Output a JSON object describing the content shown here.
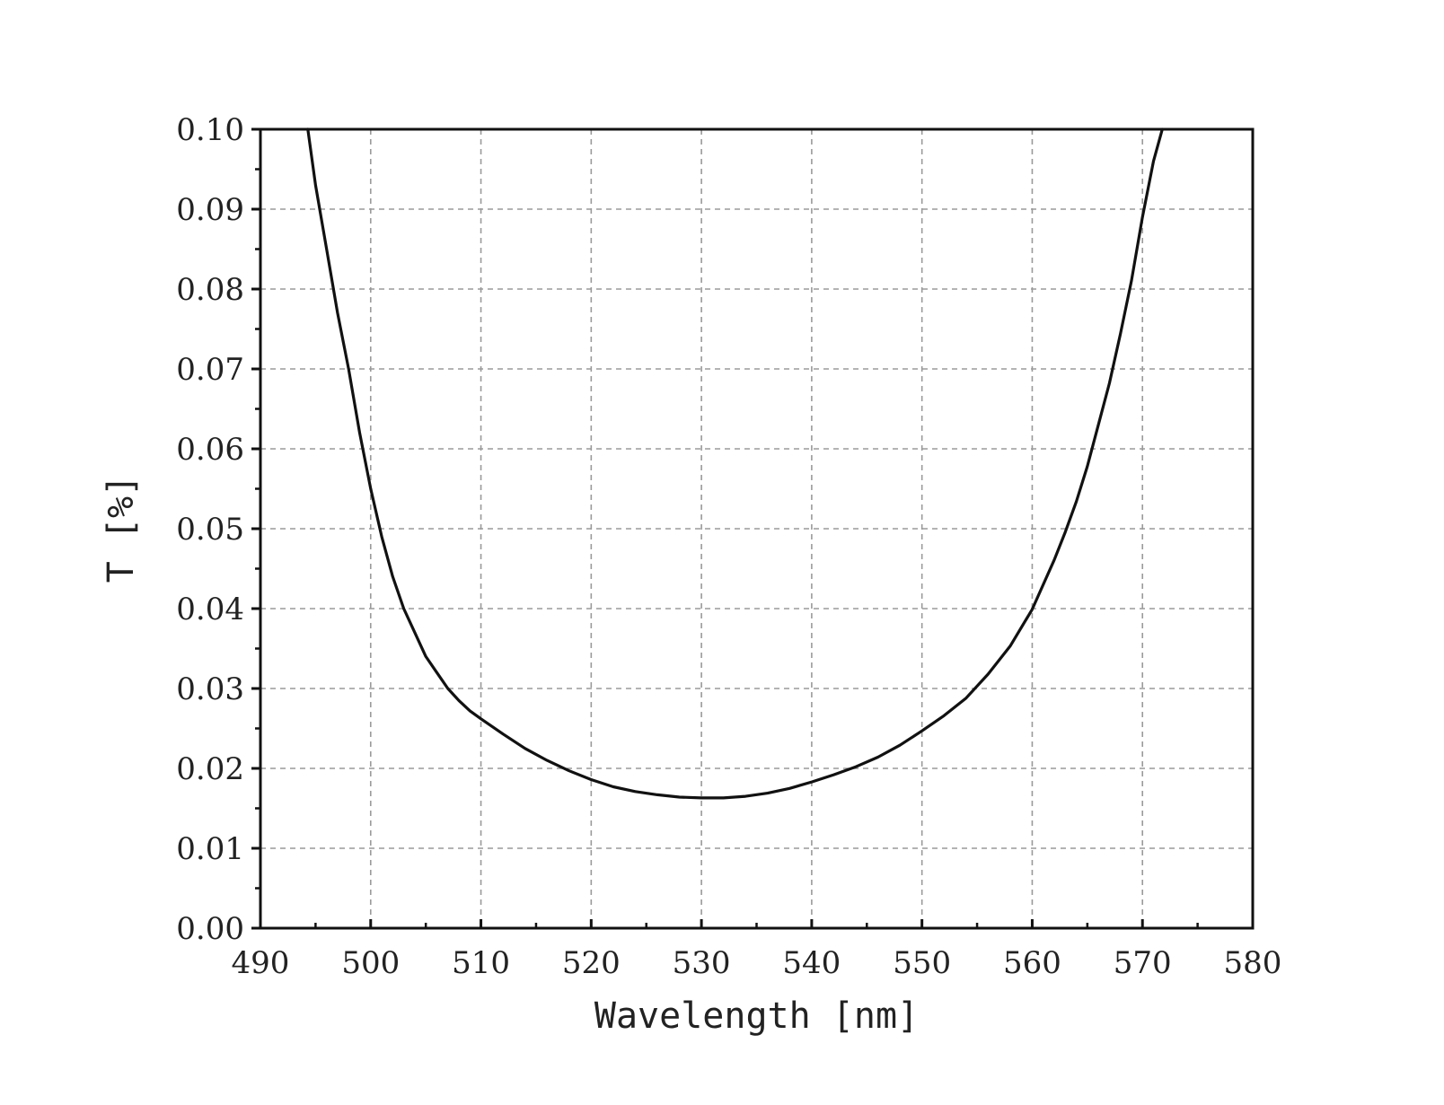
{
  "chart_data": {
    "type": "line",
    "xlabel": "Wavelength [nm]",
    "ylabel": "T [%]",
    "xlim": [
      490,
      580
    ],
    "ylim": [
      0.0,
      0.1
    ],
    "x_ticks": [
      "490",
      "500",
      "510",
      "520",
      "530",
      "540",
      "550",
      "560",
      "570",
      "580"
    ],
    "y_ticks": [
      "0.00",
      "0.01",
      "0.02",
      "0.03",
      "0.04",
      "0.05",
      "0.06",
      "0.07",
      "0.08",
      "0.09",
      "0.10"
    ],
    "grid": true,
    "grid_style": "dashed",
    "line_color": "#111111",
    "series": [
      {
        "x": [
          494.3,
          495.0,
          496.0,
          497.0,
          498.0,
          499.0,
          500.0,
          501.0,
          502.0,
          503.0,
          504.0,
          505.0,
          506.0,
          507.0,
          508.0,
          509.0,
          510.0,
          512.0,
          514.0,
          516.0,
          518.0,
          520.0,
          522.0,
          524.0,
          526.0,
          528.0,
          530.0,
          532.0,
          534.0,
          536.0,
          538.0,
          540.0,
          542.0,
          544.0,
          546.0,
          548.0,
          550.0,
          552.0,
          554.0,
          556.0,
          558.0,
          560.0,
          562.0,
          563.0,
          564.0,
          565.0,
          566.0,
          567.0,
          568.0,
          569.0,
          570.0,
          571.0,
          571.8
        ],
        "y": [
          0.1,
          0.093,
          0.085,
          0.077,
          0.07,
          0.062,
          0.055,
          0.049,
          0.044,
          0.04,
          0.037,
          0.034,
          0.032,
          0.03,
          0.0285,
          0.0272,
          0.0262,
          0.0243,
          0.0225,
          0.021,
          0.0197,
          0.0186,
          0.0177,
          0.0171,
          0.0167,
          0.0164,
          0.0163,
          0.0163,
          0.0165,
          0.0169,
          0.0175,
          0.0183,
          0.0192,
          0.0202,
          0.0214,
          0.0229,
          0.0247,
          0.0266,
          0.0288,
          0.0318,
          0.0353,
          0.0399,
          0.0461,
          0.0496,
          0.0534,
          0.0578,
          0.063,
          0.0682,
          0.0744,
          0.081,
          0.089,
          0.096,
          0.1
        ]
      }
    ]
  }
}
